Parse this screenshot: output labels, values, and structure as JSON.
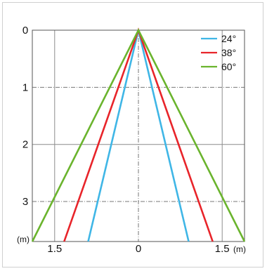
{
  "chart_data": {
    "type": "line",
    "title": "",
    "xlabel": "",
    "ylabel": "",
    "x_unit": "(m)",
    "y_unit": "(m)",
    "xlim": [
      -1.9,
      1.9
    ],
    "ylim": [
      0,
      3.7
    ],
    "x_ticks": [
      {
        "value": -1.5,
        "label": "1.5"
      },
      {
        "value": 0,
        "label": "0"
      },
      {
        "value": 1.5,
        "label": "1.5"
      }
    ],
    "y_ticks": [
      {
        "value": 0,
        "label": "0"
      },
      {
        "value": 1,
        "label": "1"
      },
      {
        "value": 2,
        "label": "2"
      },
      {
        "value": 3,
        "label": "3"
      }
    ],
    "grid_solid": {
      "x": [
        -1.5,
        1.5
      ],
      "y": [
        2
      ]
    },
    "grid_dashdot": {
      "x": [
        0
      ],
      "y": [
        1,
        3
      ]
    },
    "legend_position": "top-right",
    "series": [
      {
        "name": "24°",
        "color": "#3fb6e6",
        "points": [
          [
            -0.9,
            3.7
          ],
          [
            0,
            0
          ],
          [
            0.9,
            3.7
          ]
        ]
      },
      {
        "name": "38°",
        "color": "#e8242a",
        "points": [
          [
            -1.33,
            3.7
          ],
          [
            0,
            0
          ],
          [
            1.33,
            3.7
          ]
        ]
      },
      {
        "name": "60°",
        "color": "#6ab42d",
        "points": [
          [
            -1.9,
            3.7
          ],
          [
            0,
            0
          ],
          [
            1.9,
            3.7
          ]
        ]
      }
    ]
  }
}
